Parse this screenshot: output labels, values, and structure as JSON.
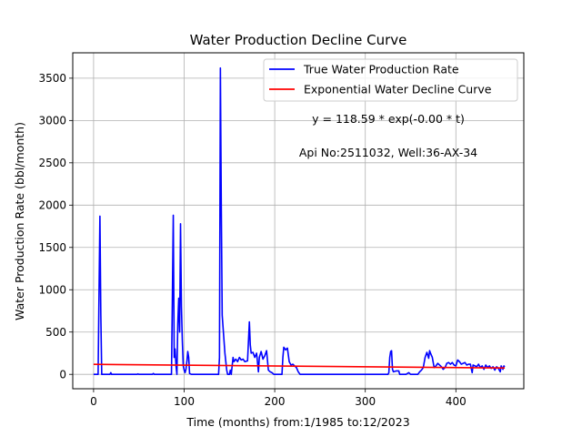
{
  "chart_data": {
    "type": "line",
    "title": "Water Production Decline Curve",
    "xlabel": "Time (months) from:1/1985 to:12/2023",
    "ylabel": "Water Production Rate (bbl/month)",
    "xlim": [
      -23,
      475
    ],
    "ylim": [
      -170,
      3800
    ],
    "xticks": [
      0,
      100,
      200,
      300,
      400
    ],
    "yticks": [
      0,
      500,
      1000,
      1500,
      2000,
      2500,
      3000,
      3500
    ],
    "grid": true,
    "legend_position": "upper-right",
    "annotations": [
      "y = 118.59 * exp(-0.00 * t)",
      "Api No:2511032, Well:36-AX-34"
    ],
    "series": [
      {
        "name": "True Water Production Rate",
        "color": "#0000ff",
        "points": [
          [
            0,
            0
          ],
          [
            5,
            0
          ],
          [
            6,
            950
          ],
          [
            7,
            1870
          ],
          [
            8,
            700
          ],
          [
            9,
            0
          ],
          [
            18,
            0
          ],
          [
            19,
            20
          ],
          [
            20,
            0
          ],
          [
            48,
            0
          ],
          [
            49,
            5
          ],
          [
            50,
            0
          ],
          [
            65,
            0
          ],
          [
            66,
            10
          ],
          [
            67,
            0
          ],
          [
            86,
            0
          ],
          [
            87,
            900
          ],
          [
            88,
            1880
          ],
          [
            89,
            200
          ],
          [
            90,
            300
          ],
          [
            91,
            100
          ],
          [
            92,
            0
          ],
          [
            93,
            600
          ],
          [
            94,
            900
          ],
          [
            95,
            500
          ],
          [
            96,
            1780
          ],
          [
            97,
            800
          ],
          [
            98,
            400
          ],
          [
            99,
            100
          ],
          [
            100,
            50
          ],
          [
            101,
            20
          ],
          [
            102,
            60
          ],
          [
            103,
            150
          ],
          [
            104,
            270
          ],
          [
            105,
            200
          ],
          [
            106,
            10
          ],
          [
            108,
            0
          ],
          [
            138,
            0
          ],
          [
            139,
            200
          ],
          [
            140,
            3620
          ],
          [
            141,
            2000
          ],
          [
            142,
            700
          ],
          [
            143,
            550
          ],
          [
            144,
            400
          ],
          [
            145,
            250
          ],
          [
            146,
            150
          ],
          [
            147,
            50
          ],
          [
            148,
            0
          ],
          [
            150,
            0
          ],
          [
            151,
            50
          ],
          [
            152,
            0
          ],
          [
            153,
            100
          ],
          [
            154,
            200
          ],
          [
            155,
            150
          ],
          [
            157,
            180
          ],
          [
            159,
            150
          ],
          [
            161,
            200
          ],
          [
            163,
            170
          ],
          [
            165,
            180
          ],
          [
            167,
            150
          ],
          [
            170,
            160
          ],
          [
            172,
            620
          ],
          [
            173,
            350
          ],
          [
            174,
            250
          ],
          [
            176,
            260
          ],
          [
            178,
            200
          ],
          [
            180,
            250
          ],
          [
            182,
            30
          ],
          [
            183,
            200
          ],
          [
            185,
            270
          ],
          [
            187,
            180
          ],
          [
            189,
            220
          ],
          [
            191,
            280
          ],
          [
            193,
            50
          ],
          [
            195,
            30
          ],
          [
            197,
            20
          ],
          [
            199,
            0
          ],
          [
            208,
            0
          ],
          [
            209,
            200
          ],
          [
            210,
            320
          ],
          [
            212,
            290
          ],
          [
            214,
            310
          ],
          [
            216,
            150
          ],
          [
            218,
            110
          ],
          [
            220,
            120
          ],
          [
            222,
            100
          ],
          [
            224,
            80
          ],
          [
            226,
            30
          ],
          [
            228,
            0
          ],
          [
            325,
            0
          ],
          [
            326,
            20
          ],
          [
            327,
            200
          ],
          [
            328,
            270
          ],
          [
            329,
            280
          ],
          [
            330,
            60
          ],
          [
            331,
            30
          ],
          [
            334,
            40
          ],
          [
            337,
            40
          ],
          [
            338,
            0
          ],
          [
            345,
            0
          ],
          [
            348,
            20
          ],
          [
            350,
            0
          ],
          [
            358,
            0
          ],
          [
            360,
            30
          ],
          [
            362,
            50
          ],
          [
            364,
            80
          ],
          [
            366,
            200
          ],
          [
            368,
            260
          ],
          [
            370,
            190
          ],
          [
            371,
            280
          ],
          [
            372,
            250
          ],
          [
            374,
            200
          ],
          [
            376,
            80
          ],
          [
            378,
            100
          ],
          [
            380,
            130
          ],
          [
            382,
            110
          ],
          [
            384,
            90
          ],
          [
            386,
            60
          ],
          [
            388,
            80
          ],
          [
            390,
            130
          ],
          [
            392,
            140
          ],
          [
            394,
            120
          ],
          [
            396,
            140
          ],
          [
            398,
            110
          ],
          [
            400,
            100
          ],
          [
            402,
            170
          ],
          [
            404,
            150
          ],
          [
            406,
            120
          ],
          [
            408,
            130
          ],
          [
            410,
            140
          ],
          [
            412,
            110
          ],
          [
            414,
            120
          ],
          [
            416,
            120
          ],
          [
            418,
            20
          ],
          [
            419,
            110
          ],
          [
            421,
            100
          ],
          [
            423,
            90
          ],
          [
            425,
            120
          ],
          [
            427,
            80
          ],
          [
            429,
            100
          ],
          [
            431,
            60
          ],
          [
            433,
            110
          ],
          [
            435,
            80
          ],
          [
            437,
            100
          ],
          [
            439,
            70
          ],
          [
            441,
            90
          ],
          [
            443,
            50
          ],
          [
            445,
            90
          ],
          [
            447,
            70
          ],
          [
            449,
            30
          ],
          [
            450,
            100
          ],
          [
            452,
            60
          ],
          [
            453,
            100
          ],
          [
            454,
            90
          ]
        ]
      },
      {
        "name": "Exponential Water Decline Curve",
        "color": "#ff0000",
        "points": [
          [
            0,
            118.6
          ],
          [
            454,
            75
          ]
        ]
      }
    ]
  }
}
